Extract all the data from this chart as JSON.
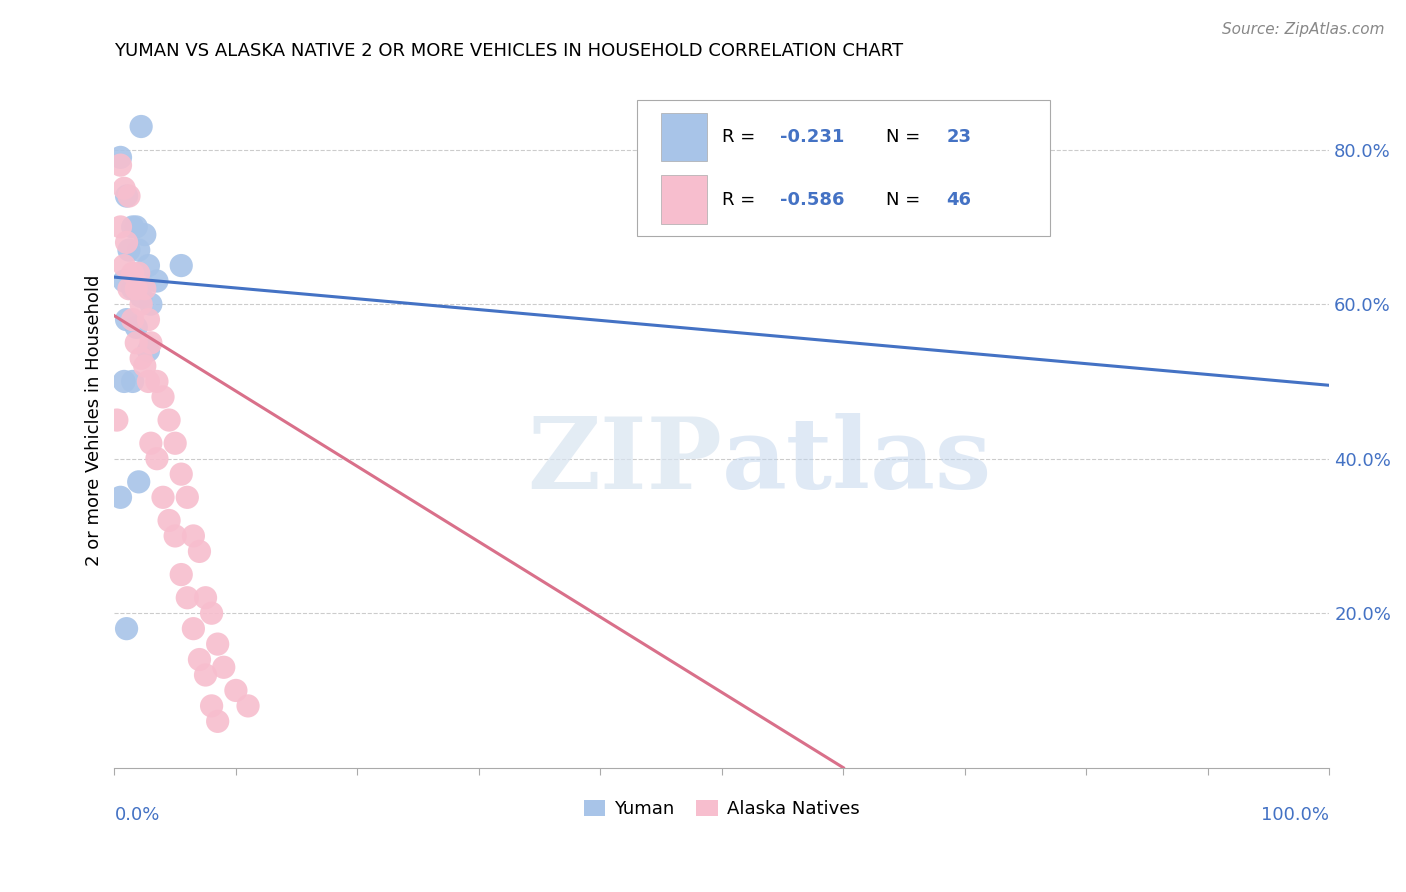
{
  "title": "YUMAN VS ALASKA NATIVE 2 OR MORE VEHICLES IN HOUSEHOLD CORRELATION CHART",
  "source": "Source: ZipAtlas.com",
  "ylabel": "2 or more Vehicles in Household",
  "legend_yuman_label": "Yuman",
  "legend_alaska_label": "Alaska Natives",
  "blue_color": "#A8C4E8",
  "pink_color": "#F7BECE",
  "blue_line_color": "#4472C4",
  "pink_line_color": "#D9708A",
  "legend_text_color": "#4472C4",
  "legend_r_color": "#4472C4",
  "legend_n_color": "#4472C4",
  "yuman_points": [
    [
      0.005,
      0.79
    ],
    [
      0.01,
      0.74
    ],
    [
      0.022,
      0.83
    ],
    [
      0.015,
      0.7
    ],
    [
      0.018,
      0.7
    ],
    [
      0.025,
      0.69
    ],
    [
      0.012,
      0.67
    ],
    [
      0.02,
      0.67
    ],
    [
      0.028,
      0.65
    ],
    [
      0.008,
      0.63
    ],
    [
      0.015,
      0.62
    ],
    [
      0.035,
      0.63
    ],
    [
      0.022,
      0.61
    ],
    [
      0.03,
      0.6
    ],
    [
      0.01,
      0.58
    ],
    [
      0.018,
      0.57
    ],
    [
      0.028,
      0.54
    ],
    [
      0.008,
      0.5
    ],
    [
      0.015,
      0.5
    ],
    [
      0.02,
      0.37
    ],
    [
      0.005,
      0.35
    ],
    [
      0.01,
      0.18
    ],
    [
      0.055,
      0.65
    ]
  ],
  "alaska_points": [
    [
      0.005,
      0.78
    ],
    [
      0.008,
      0.75
    ],
    [
      0.012,
      0.74
    ],
    [
      0.005,
      0.7
    ],
    [
      0.01,
      0.68
    ],
    [
      0.008,
      0.65
    ],
    [
      0.015,
      0.64
    ],
    [
      0.02,
      0.64
    ],
    [
      0.012,
      0.62
    ],
    [
      0.018,
      0.62
    ],
    [
      0.025,
      0.62
    ],
    [
      0.022,
      0.6
    ],
    [
      0.015,
      0.58
    ],
    [
      0.028,
      0.58
    ],
    [
      0.018,
      0.55
    ],
    [
      0.03,
      0.55
    ],
    [
      0.022,
      0.53
    ],
    [
      0.025,
      0.52
    ],
    [
      0.028,
      0.5
    ],
    [
      0.035,
      0.5
    ],
    [
      0.04,
      0.48
    ],
    [
      0.045,
      0.45
    ],
    [
      0.03,
      0.42
    ],
    [
      0.05,
      0.42
    ],
    [
      0.035,
      0.4
    ],
    [
      0.055,
      0.38
    ],
    [
      0.04,
      0.35
    ],
    [
      0.06,
      0.35
    ],
    [
      0.045,
      0.32
    ],
    [
      0.065,
      0.3
    ],
    [
      0.05,
      0.3
    ],
    [
      0.07,
      0.28
    ],
    [
      0.055,
      0.25
    ],
    [
      0.075,
      0.22
    ],
    [
      0.06,
      0.22
    ],
    [
      0.08,
      0.2
    ],
    [
      0.065,
      0.18
    ],
    [
      0.085,
      0.16
    ],
    [
      0.07,
      0.14
    ],
    [
      0.09,
      0.13
    ],
    [
      0.075,
      0.12
    ],
    [
      0.1,
      0.1
    ],
    [
      0.08,
      0.08
    ],
    [
      0.11,
      0.08
    ],
    [
      0.085,
      0.06
    ],
    [
      0.002,
      0.45
    ]
  ],
  "blue_line": [
    [
      0.0,
      0.635
    ],
    [
      1.0,
      0.495
    ]
  ],
  "pink_line": [
    [
      0.0,
      0.585
    ],
    [
      0.6,
      0.0
    ]
  ],
  "watermark_zip": "ZIP",
  "watermark_atlas": "atlas",
  "xlim": [
    0.0,
    1.0
  ],
  "ylim": [
    0.0,
    0.9
  ],
  "yticks": [
    0.2,
    0.4,
    0.6,
    0.8
  ],
  "ytick_labels": [
    "20.0%",
    "40.0%",
    "60.0%",
    "80.0%"
  ],
  "figsize": [
    14.06,
    8.92
  ],
  "dpi": 100
}
